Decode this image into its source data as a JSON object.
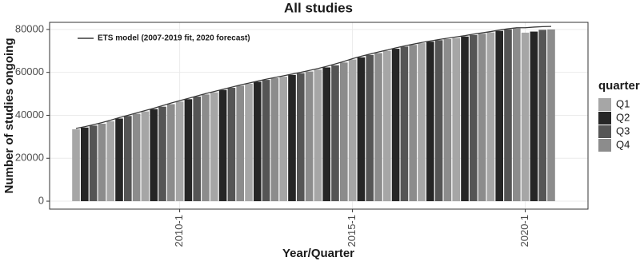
{
  "chart_data": {
    "type": "bar",
    "title": "All studies",
    "x_label": "Year/Quarter",
    "y_label": "Number of studies ongoing",
    "legend_title": "quarter",
    "categories": [
      null,
      null,
      null,
      null,
      null,
      null,
      null,
      null,
      null,
      null,
      null,
      null,
      "2010-1",
      null,
      null,
      null,
      null,
      null,
      null,
      null,
      null,
      null,
      null,
      null,
      null,
      null,
      null,
      null,
      null,
      null,
      null,
      null,
      "2015-1",
      null,
      null,
      null,
      null,
      null,
      null,
      null,
      null,
      null,
      null,
      null,
      null,
      null,
      null,
      null,
      null,
      null,
      null,
      null,
      "2020-1",
      null,
      null,
      null
    ],
    "series": [
      {
        "name": "Q1",
        "color": "#a6a6a6",
        "values": [
          33500,
          null,
          null,
          null,
          37200,
          null,
          null,
          null,
          41800,
          null,
          null,
          null,
          46400,
          null,
          null,
          null,
          50700,
          null,
          null,
          null,
          54700,
          null,
          null,
          null,
          58000,
          null,
          null,
          null,
          61300,
          null,
          null,
          null,
          66000,
          null,
          null,
          null,
          70000,
          null,
          null,
          null,
          73600,
          null,
          null,
          null,
          76000,
          null,
          null,
          null,
          78600,
          null,
          null,
          null,
          78500,
          null,
          null,
          null
        ]
      },
      {
        "name": "Q2",
        "color": "#262626",
        "values": [
          null,
          34300,
          null,
          null,
          null,
          38500,
          null,
          null,
          null,
          42900,
          null,
          null,
          null,
          47500,
          null,
          null,
          null,
          51800,
          null,
          null,
          null,
          55600,
          null,
          null,
          null,
          58800,
          null,
          null,
          null,
          62300,
          null,
          null,
          null,
          67000,
          null,
          null,
          null,
          71000,
          null,
          null,
          null,
          74300,
          null,
          null,
          null,
          76700,
          null,
          null,
          null,
          79300,
          null,
          null,
          null,
          79000,
          null,
          null
        ]
      },
      {
        "name": "Q3",
        "color": "#555555",
        "values": [
          null,
          null,
          35200,
          null,
          null,
          null,
          39700,
          null,
          null,
          null,
          44000,
          null,
          null,
          null,
          48700,
          null,
          null,
          null,
          52800,
          null,
          null,
          null,
          56500,
          null,
          null,
          null,
          59600,
          null,
          null,
          null,
          63300,
          null,
          null,
          null,
          68100,
          null,
          null,
          null,
          72000,
          null,
          null,
          null,
          75000,
          null,
          null,
          null,
          77400,
          null,
          null,
          null,
          80000,
          null,
          null,
          null,
          79800,
          null
        ]
      },
      {
        "name": "Q4",
        "color": "#8c8c8c",
        "values": [
          null,
          null,
          null,
          36100,
          null,
          null,
          null,
          40700,
          null,
          null,
          null,
          45200,
          null,
          null,
          null,
          49700,
          null,
          null,
          null,
          53800,
          null,
          null,
          null,
          57300,
          null,
          null,
          null,
          60400,
          null,
          null,
          null,
          64600,
          null,
          null,
          null,
          69000,
          null,
          null,
          null,
          72800,
          null,
          null,
          null,
          75500,
          null,
          null,
          null,
          78000,
          null,
          null,
          null,
          80500,
          null,
          null,
          null,
          80000
        ]
      }
    ],
    "line": {
      "name": "ETS model (2007-2019 fit, 2020 forecast)",
      "color": "#3a3a3a",
      "values": [
        33900,
        34700,
        35600,
        36600,
        37700,
        38900,
        40000,
        41100,
        42200,
        43300,
        44500,
        45700,
        46800,
        47900,
        49000,
        50100,
        51100,
        52100,
        53100,
        54100,
        55000,
        55900,
        56800,
        57600,
        58400,
        59200,
        60000,
        60900,
        61800,
        62800,
        63900,
        65100,
        66400,
        67500,
        68500,
        69500,
        70400,
        71400,
        72300,
        73100,
        73900,
        74600,
        75300,
        75900,
        76500,
        77100,
        77800,
        78400,
        79000,
        79700,
        80300,
        80800,
        80800,
        81100,
        81300,
        81400
      ]
    },
    "ylim": [
      -3700,
      83300
    ],
    "yticks": [
      0,
      20000,
      40000,
      60000,
      80000
    ],
    "grid": true
  }
}
